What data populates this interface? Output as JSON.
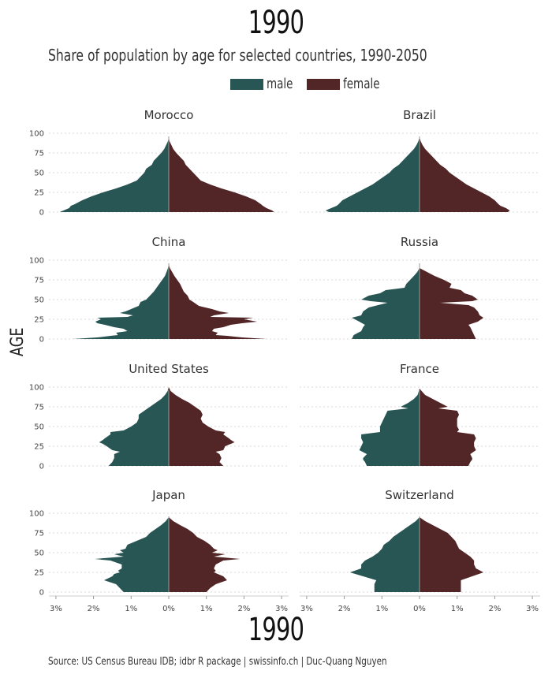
{
  "header": {
    "year": "1990",
    "subtitle": "Share of population by age for selected countries, 1990-2050"
  },
  "legend": [
    {
      "label": "male",
      "color": "#285654"
    },
    {
      "label": "female",
      "color": "#522627"
    }
  ],
  "footer": {
    "year": "1990",
    "source": "Source: US Census Bureau IDB; idbr R package | swissinfo.ch | Duc-Quang Nguyen"
  },
  "chart_data": {
    "type": "area",
    "title": "1990",
    "subtitle": "Share of population by age for selected countries, 1990-2050",
    "xlabel": "",
    "ylabel": "AGE",
    "xlim": [
      -3.2,
      3.2
    ],
    "ylim": [
      0,
      100
    ],
    "x_ticks": [
      -3,
      -2,
      -1,
      0,
      1,
      2,
      3
    ],
    "x_tick_labels": [
      "3%",
      "2%",
      "1%",
      "0%",
      "1%",
      "2%",
      "3%"
    ],
    "y_ticks": [
      0,
      25,
      50,
      75,
      100
    ],
    "y_tick_labels": [
      "0",
      "25",
      "50",
      "75",
      "100"
    ],
    "grid": true,
    "legend_position": "top-center",
    "series_colors": {
      "male": "#285654",
      "female": "#522627"
    },
    "panels": [
      {
        "country": "Morocco",
        "ages": [
          0,
          2,
          5,
          8,
          10,
          15,
          20,
          25,
          30,
          35,
          40,
          45,
          50,
          55,
          60,
          65,
          70,
          75,
          80,
          85,
          90,
          95
        ],
        "male": [
          2.9,
          2.8,
          2.65,
          2.6,
          2.5,
          2.3,
          2.05,
          1.75,
          1.4,
          1.1,
          0.85,
          0.75,
          0.65,
          0.6,
          0.45,
          0.4,
          0.3,
          0.2,
          0.12,
          0.07,
          0.02,
          0
        ],
        "female": [
          2.8,
          2.75,
          2.6,
          2.5,
          2.45,
          2.3,
          2.05,
          1.75,
          1.4,
          1.1,
          0.85,
          0.75,
          0.65,
          0.55,
          0.45,
          0.4,
          0.3,
          0.2,
          0.12,
          0.07,
          0.02,
          0
        ]
      },
      {
        "country": "Brazil",
        "ages": [
          0,
          2,
          5,
          8,
          10,
          15,
          20,
          25,
          30,
          35,
          40,
          45,
          50,
          55,
          60,
          65,
          70,
          75,
          80,
          85,
          90,
          95
        ],
        "male": [
          2.4,
          2.5,
          2.35,
          2.2,
          2.15,
          2.05,
          1.85,
          1.65,
          1.45,
          1.25,
          1.1,
          0.95,
          0.8,
          0.7,
          0.55,
          0.45,
          0.35,
          0.25,
          0.15,
          0.08,
          0.03,
          0
        ],
        "female": [
          2.35,
          2.4,
          2.3,
          2.15,
          2.1,
          2.0,
          1.85,
          1.65,
          1.45,
          1.25,
          1.1,
          0.95,
          0.8,
          0.7,
          0.55,
          0.45,
          0.35,
          0.25,
          0.15,
          0.08,
          0.03,
          0
        ]
      },
      {
        "country": "China",
        "ages": [
          0,
          2,
          4,
          5,
          8,
          10,
          13,
          15,
          18,
          20,
          22,
          25,
          27,
          28,
          30,
          33,
          35,
          38,
          42,
          47,
          50,
          55,
          60,
          70,
          80,
          90,
          95
        ],
        "male": [
          2.55,
          1.9,
          1.55,
          1.35,
          1.4,
          1.1,
          1.2,
          1.45,
          1.7,
          1.9,
          1.95,
          1.8,
          1.9,
          1.1,
          0.95,
          1.3,
          1.15,
          1.0,
          0.8,
          0.75,
          0.6,
          0.5,
          0.4,
          0.25,
          0.1,
          0.02,
          0
        ],
        "female": [
          2.6,
          1.95,
          1.55,
          1.25,
          1.3,
          1.15,
          1.2,
          1.45,
          1.65,
          1.95,
          2.35,
          2.0,
          2.25,
          1.1,
          1.2,
          1.6,
          1.35,
          1.15,
          0.8,
          0.65,
          0.55,
          0.5,
          0.4,
          0.3,
          0.15,
          0.03,
          0
        ]
      },
      {
        "country": "Russia",
        "ages": [
          0,
          5,
          10,
          15,
          18,
          22,
          27,
          30,
          35,
          40,
          43,
          46,
          48,
          50,
          55,
          58,
          62,
          65,
          70,
          75,
          80,
          85,
          90
        ],
        "male": [
          1.8,
          1.75,
          1.55,
          1.5,
          1.45,
          1.6,
          1.8,
          1.55,
          1.5,
          1.35,
          1.1,
          0.85,
          1.3,
          1.55,
          1.35,
          1.05,
          0.9,
          0.4,
          0.35,
          0.25,
          0.15,
          0.06,
          0
        ],
        "female": [
          1.5,
          1.45,
          1.4,
          1.35,
          1.3,
          1.55,
          1.7,
          1.6,
          1.55,
          1.45,
          1.3,
          0.55,
          1.4,
          1.55,
          1.4,
          1.2,
          1.1,
          0.8,
          0.85,
          0.65,
          0.4,
          0.2,
          0
        ]
      },
      {
        "country": "United States",
        "ages": [
          0,
          5,
          10,
          15,
          18,
          20,
          25,
          28,
          30,
          33,
          35,
          40,
          43,
          45,
          50,
          55,
          60,
          65,
          70,
          75,
          80,
          85,
          90,
          95,
          100
        ],
        "male": [
          1.6,
          1.5,
          1.45,
          1.45,
          1.3,
          1.5,
          1.65,
          1.75,
          1.85,
          1.75,
          1.7,
          1.55,
          1.55,
          1.2,
          1.0,
          0.85,
          0.8,
          0.8,
          0.65,
          0.5,
          0.35,
          0.2,
          0.1,
          0.03,
          0
        ],
        "female": [
          1.45,
          1.35,
          1.4,
          1.35,
          1.25,
          1.45,
          1.5,
          1.65,
          1.75,
          1.65,
          1.6,
          1.45,
          1.5,
          1.25,
          1.05,
          0.9,
          0.85,
          0.9,
          0.85,
          0.7,
          0.55,
          0.35,
          0.18,
          0.05,
          0
        ]
      },
      {
        "country": "France",
        "ages": [
          0,
          5,
          8,
          10,
          15,
          20,
          25,
          30,
          35,
          40,
          43,
          46,
          50,
          55,
          60,
          65,
          70,
          73,
          75,
          80,
          85,
          90,
          98
        ],
        "male": [
          1.4,
          1.45,
          1.5,
          1.5,
          1.4,
          1.6,
          1.55,
          1.5,
          1.55,
          1.55,
          1.05,
          1.05,
          1.05,
          1.0,
          0.95,
          0.9,
          0.85,
          0.3,
          0.5,
          0.3,
          0.15,
          0.05,
          0
        ],
        "female": [
          1.3,
          1.35,
          1.4,
          1.4,
          1.35,
          1.5,
          1.45,
          1.45,
          1.5,
          1.45,
          1.0,
          1.05,
          1.0,
          1.0,
          1.0,
          1.05,
          1.0,
          0.5,
          0.75,
          0.55,
          0.35,
          0.15,
          0
        ]
      },
      {
        "country": "Japan",
        "ages": [
          0,
          5,
          10,
          15,
          20,
          23,
          25,
          27,
          30,
          35,
          40,
          42,
          45,
          48,
          50,
          53,
          55,
          60,
          65,
          70,
          75,
          80,
          85,
          90,
          95
        ],
        "male": [
          1.2,
          1.3,
          1.4,
          1.72,
          1.5,
          1.45,
          1.3,
          1.35,
          1.25,
          1.25,
          1.55,
          1.97,
          1.2,
          1.45,
          1.2,
          1.3,
          1.15,
          1.1,
          0.85,
          0.6,
          0.5,
          0.35,
          0.2,
          0.08,
          0
        ],
        "female": [
          1.0,
          1.1,
          1.25,
          1.55,
          1.45,
          1.3,
          1.2,
          1.25,
          1.2,
          1.25,
          1.45,
          1.9,
          1.2,
          1.5,
          1.15,
          1.3,
          1.2,
          1.1,
          0.95,
          0.75,
          0.65,
          0.5,
          0.3,
          0.12,
          0
        ]
      },
      {
        "country": "Switzerland",
        "ages": [
          0,
          5,
          10,
          15,
          20,
          25,
          30,
          35,
          40,
          45,
          50,
          55,
          60,
          65,
          70,
          75,
          80,
          85,
          90,
          95
        ],
        "male": [
          1.2,
          1.2,
          1.2,
          1.15,
          1.5,
          1.85,
          1.55,
          1.55,
          1.45,
          1.25,
          1.1,
          1.0,
          0.95,
          0.8,
          0.7,
          0.55,
          0.4,
          0.25,
          0.1,
          0
        ],
        "female": [
          1.1,
          1.1,
          1.1,
          1.1,
          1.4,
          1.7,
          1.5,
          1.45,
          1.45,
          1.35,
          1.2,
          1.05,
          1.0,
          0.95,
          0.85,
          0.75,
          0.55,
          0.35,
          0.15,
          0
        ]
      }
    ]
  }
}
